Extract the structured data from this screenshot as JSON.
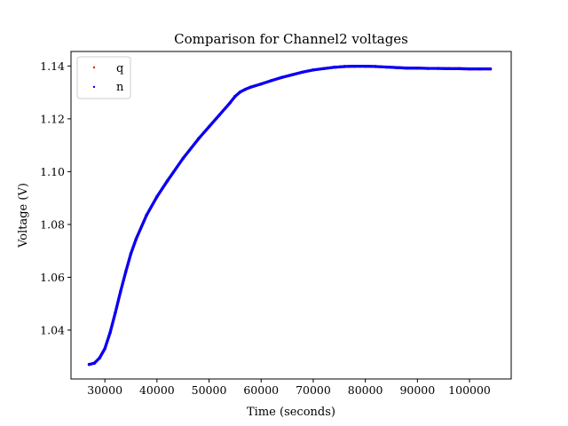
{
  "chart_data": {
    "type": "scatter",
    "title": "Comparison for Channel2 voltages",
    "xlabel": "Time (seconds)",
    "ylabel": "Voltage (V)",
    "xlim": [
      23500,
      108000
    ],
    "ylim": [
      1.0215,
      1.1455
    ],
    "xticks": [
      30000,
      40000,
      50000,
      60000,
      70000,
      80000,
      90000,
      100000
    ],
    "xtick_labels": [
      "30000",
      "40000",
      "50000",
      "60000",
      "70000",
      "80000",
      "90000",
      "100000"
    ],
    "yticks": [
      1.04,
      1.06,
      1.08,
      1.1,
      1.12,
      1.14
    ],
    "ytick_labels": [
      "1.04",
      "1.06",
      "1.08",
      "1.10",
      "1.12",
      "1.14"
    ],
    "grid": false,
    "legend_position": "top-left",
    "series": [
      {
        "name": "q",
        "color": "#ff0000",
        "x": [
          27000,
          28000,
          29000,
          30000,
          31000,
          32000,
          33000,
          34000,
          35000,
          36000,
          38000,
          40000,
          42000,
          45000,
          48000,
          50000,
          52000,
          54000,
          55000,
          56000,
          57000,
          58000,
          60000,
          62000,
          64000,
          66000,
          68000,
          70000,
          72000,
          74000,
          76000,
          78000,
          80000,
          82000,
          84000,
          86000,
          88000,
          90000,
          92000,
          94000,
          96000,
          98000,
          100000,
          102000,
          104000
        ],
        "y": [
          1.027,
          1.0275,
          1.0295,
          1.033,
          1.039,
          1.0465,
          1.0545,
          1.062,
          1.069,
          1.0745,
          1.0835,
          1.0905,
          1.0965,
          1.105,
          1.1125,
          1.117,
          1.1215,
          1.126,
          1.1285,
          1.1302,
          1.1312,
          1.132,
          1.1332,
          1.1345,
          1.1357,
          1.1367,
          1.1377,
          1.1385,
          1.139,
          1.1395,
          1.1398,
          1.1399,
          1.1399,
          1.1398,
          1.1396,
          1.1394,
          1.1392,
          1.1392,
          1.1391,
          1.1391,
          1.139,
          1.139,
          1.1389,
          1.1389,
          1.1389
        ]
      },
      {
        "name": "n",
        "color": "#0000ff",
        "x": [
          27000,
          28000,
          29000,
          30000,
          31000,
          32000,
          33000,
          34000,
          35000,
          36000,
          38000,
          40000,
          42000,
          45000,
          48000,
          50000,
          52000,
          54000,
          55000,
          56000,
          57000,
          58000,
          60000,
          62000,
          64000,
          66000,
          68000,
          70000,
          72000,
          74000,
          76000,
          78000,
          80000,
          82000,
          84000,
          86000,
          88000,
          90000,
          92000,
          94000,
          96000,
          98000,
          100000,
          102000,
          104000
        ],
        "y": [
          1.027,
          1.0275,
          1.0295,
          1.033,
          1.039,
          1.0465,
          1.0545,
          1.062,
          1.069,
          1.0745,
          1.0835,
          1.0905,
          1.0965,
          1.105,
          1.1125,
          1.117,
          1.1215,
          1.126,
          1.1285,
          1.1302,
          1.1312,
          1.132,
          1.1332,
          1.1345,
          1.1357,
          1.1367,
          1.1377,
          1.1385,
          1.139,
          1.1395,
          1.1398,
          1.1399,
          1.1399,
          1.1398,
          1.1396,
          1.1394,
          1.1392,
          1.1392,
          1.1391,
          1.1391,
          1.139,
          1.139,
          1.1389,
          1.1389,
          1.1389
        ]
      }
    ]
  }
}
